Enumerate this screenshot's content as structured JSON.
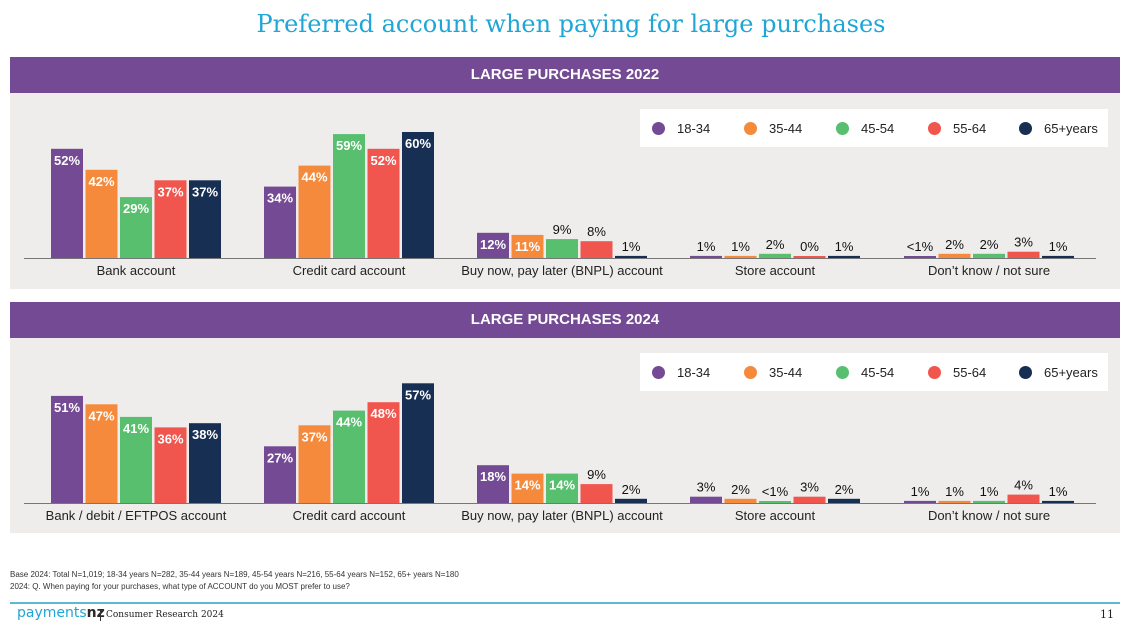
{
  "title": "Preferred account when paying for large purchases",
  "colors": {
    "18-34": "#744a94",
    "35-44": "#f58a3c",
    "45-54": "#57bf6e",
    "55-64": "#f0554e",
    "65+years": "#162f53",
    "banner": "#744a94",
    "panel": "#eeedec",
    "title": "#1fa6d6"
  },
  "legend": [
    "18-34",
    "35-44",
    "45-54",
    "55-64",
    "65+years"
  ],
  "chart_data": [
    {
      "type": "bar",
      "title": "LARGE PURCHASES 2022",
      "categories": [
        "Bank account",
        "Credit card account",
        "Buy now, pay later (BNPL) account",
        "Store account",
        "Don’t know / not sure"
      ],
      "series": [
        {
          "name": "18-34",
          "values": [
            52,
            34,
            12,
            1,
            0.5
          ],
          "labels": [
            "52%",
            "34%",
            "12%",
            "1%",
            "<1%"
          ]
        },
        {
          "name": "35-44",
          "values": [
            42,
            44,
            11,
            1,
            2
          ],
          "labels": [
            "42%",
            "44%",
            "11%",
            "1%",
            "2%"
          ]
        },
        {
          "name": "45-54",
          "values": [
            29,
            59,
            9,
            2,
            2
          ],
          "labels": [
            "29%",
            "59%",
            "9%",
            "2%",
            "2%"
          ]
        },
        {
          "name": "55-64",
          "values": [
            37,
            52,
            8,
            0,
            3
          ],
          "labels": [
            "37%",
            "52%",
            "8%",
            "0%",
            "3%"
          ]
        },
        {
          "name": "65+years",
          "values": [
            37,
            60,
            1,
            1,
            1
          ],
          "labels": [
            "37%",
            "60%",
            "1%",
            "1%",
            "1%"
          ]
        }
      ]
    },
    {
      "type": "bar",
      "title": "LARGE PURCHASES 2024",
      "categories": [
        "Bank / debit / EFTPOS account",
        "Credit card account",
        "Buy now, pay later (BNPL) account",
        "Store account",
        "Don’t know / not sure"
      ],
      "series": [
        {
          "name": "18-34",
          "values": [
            51,
            27,
            18,
            3,
            1
          ],
          "labels": [
            "51%",
            "27%",
            "18%",
            "3%",
            "1%"
          ]
        },
        {
          "name": "35-44",
          "values": [
            47,
            37,
            14,
            2,
            1
          ],
          "labels": [
            "47%",
            "37%",
            "14%",
            "2%",
            "1%"
          ]
        },
        {
          "name": "45-54",
          "values": [
            41,
            44,
            14,
            0.5,
            1
          ],
          "labels": [
            "41%",
            "44%",
            "14%",
            "<1%",
            "1%"
          ]
        },
        {
          "name": "55-64",
          "values": [
            36,
            48,
            9,
            3,
            4
          ],
          "labels": [
            "36%",
            "48%",
            "9%",
            "3%",
            "4%"
          ]
        },
        {
          "name": "65+years",
          "values": [
            38,
            57,
            2,
            2,
            1
          ],
          "labels": [
            "38%",
            "57%",
            "2%",
            "2%",
            "1%"
          ]
        }
      ]
    }
  ],
  "base_line1": "Base 2024: Total N=1,019; 18-34 years N=282, 35-44 years N=189, 45-54 years N=216, 55-64 years N=152, 65+ years N=180",
  "base_line2": "2024: Q. When paying for your purchases, what type of ACCOUNT do you MOST prefer to use?",
  "brand_prefix": "payments",
  "brand_suffix": "nz",
  "report": "Consumer Research 2024",
  "page_number": "11"
}
